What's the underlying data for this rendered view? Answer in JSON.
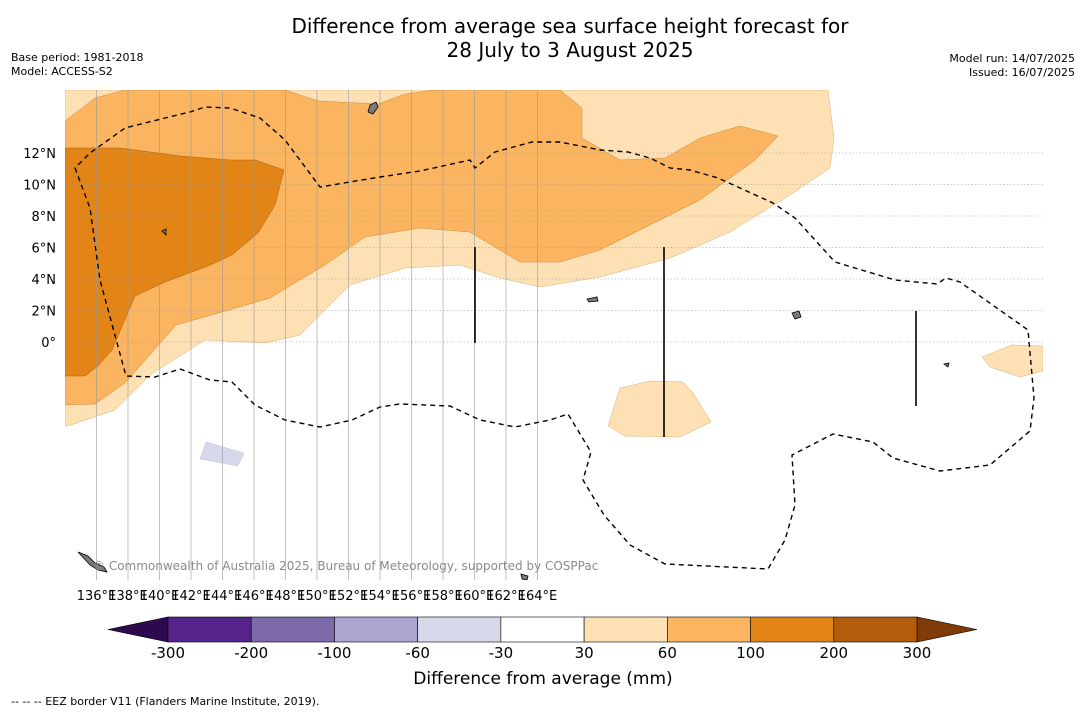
{
  "header": {
    "title_line1": "Difference from average sea surface height forecast for",
    "title_line2": "28 July to 3 August 2025",
    "base_period": "Base period: 1981-2018",
    "model": "Model: ACCESS-S2",
    "model_run": "Model run: 14/07/2025",
    "issued": "Issued: 16/07/2025"
  },
  "map": {
    "x_ticks": [
      "136°E",
      "138°E",
      "140°E",
      "142°E",
      "144°E",
      "146°E",
      "148°E",
      "150°E",
      "152°E",
      "154°E",
      "156°E",
      "158°E",
      "160°E",
      "162°E",
      "164°E"
    ],
    "y_ticks": [
      "12°N",
      "10°N",
      "8°N",
      "6°N",
      "4°N",
      "2°N",
      "0°"
    ],
    "credit": "© Commonwealth of Australia 2025, Bureau of Meteorology, supported by COSPPac"
  },
  "colorbar": {
    "title": "Difference from average (mm)",
    "labels": [
      "-300",
      "-200",
      "-100",
      "-60",
      "-30",
      "30",
      "60",
      "100",
      "200",
      "300"
    ],
    "colors": {
      "under": "#2d0a4e",
      "bins": [
        "#55248a",
        "#7d6aa8",
        "#aba5cf",
        "#d7d8ea",
        "#ffffff",
        "#fde0b3",
        "#fbb560",
        "#e38516",
        "#b35c0c"
      ],
      "over": "#7f3b08"
    }
  },
  "footnote": "-- -- -- EEZ border V11 (Flanders Marine Institute, 2019)."
}
